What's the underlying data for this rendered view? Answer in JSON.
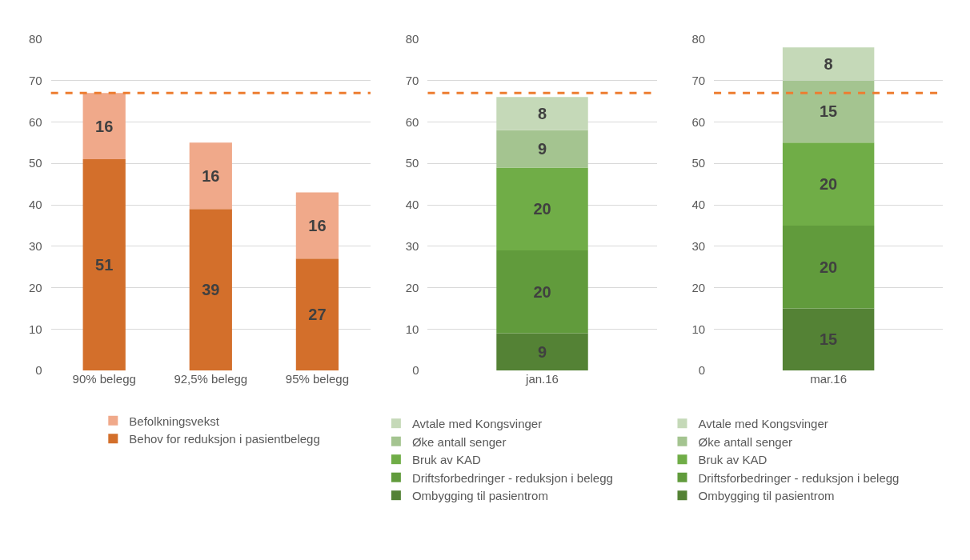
{
  "chart_data": [
    {
      "type": "bar",
      "stacked": true,
      "categories": [
        "90% belegg",
        "92,5% belegg",
        "95% belegg"
      ],
      "series": [
        {
          "name": "Behov for reduksjon i pasientbelegg",
          "color": "#d36f2b",
          "values": [
            51,
            39,
            27
          ]
        },
        {
          "name": "Befolkningsvekst",
          "color": "#f0a98a",
          "values": [
            16,
            16,
            16
          ]
        }
      ],
      "ylim": [
        0,
        80
      ],
      "yticks": [
        0,
        10,
        20,
        30,
        40,
        50,
        60,
        70,
        80
      ],
      "grid": "y",
      "legend": "bottom",
      "data_labels": true,
      "ref_lines": [
        {
          "axis": "y",
          "value": 67,
          "color": "#ed7d31",
          "line_style": "dashed"
        }
      ]
    },
    {
      "type": "bar",
      "stacked": true,
      "categories": [
        "jan.16"
      ],
      "series": [
        {
          "name": "Ombygging til pasientrom",
          "color": "#548235",
          "values": [
            9
          ]
        },
        {
          "name": "Driftsforbedringer - reduksjon i belegg",
          "color": "#619b3c",
          "values": [
            20
          ]
        },
        {
          "name": "Bruk av KAD",
          "color": "#70ad47",
          "values": [
            20
          ]
        },
        {
          "name": "Øke antall senger",
          "color": "#a4c490",
          "values": [
            9
          ]
        },
        {
          "name": "Avtale med Kongsvinger",
          "color": "#c5d9b8",
          "values": [
            8
          ]
        }
      ],
      "ylim": [
        0,
        80
      ],
      "yticks": [
        0,
        10,
        20,
        30,
        40,
        50,
        60,
        70,
        80
      ],
      "grid": "y",
      "legend": "bottom",
      "data_labels": true,
      "ref_lines": [
        {
          "axis": "y",
          "value": 67,
          "color": "#ed7d31",
          "line_style": "dashed"
        }
      ]
    },
    {
      "type": "bar",
      "stacked": true,
      "categories": [
        "mar.16"
      ],
      "series": [
        {
          "name": "Ombygging til pasientrom",
          "color": "#548235",
          "values": [
            15
          ]
        },
        {
          "name": "Driftsforbedringer - reduksjon i belegg",
          "color": "#619b3c",
          "values": [
            20
          ]
        },
        {
          "name": "Bruk av KAD",
          "color": "#70ad47",
          "values": [
            20
          ]
        },
        {
          "name": "Øke antall senger",
          "color": "#a4c490",
          "values": [
            15
          ]
        },
        {
          "name": "Avtale med Kongsvinger",
          "color": "#c5d9b8",
          "values": [
            8
          ]
        }
      ],
      "ylim": [
        0,
        80
      ],
      "yticks": [
        0,
        10,
        20,
        30,
        40,
        50,
        60,
        70,
        80
      ],
      "grid": "y",
      "legend": "bottom",
      "data_labels": true,
      "ref_lines": [
        {
          "axis": "y",
          "value": 67,
          "color": "#ed7d31",
          "line_style": "dashed"
        }
      ]
    }
  ]
}
